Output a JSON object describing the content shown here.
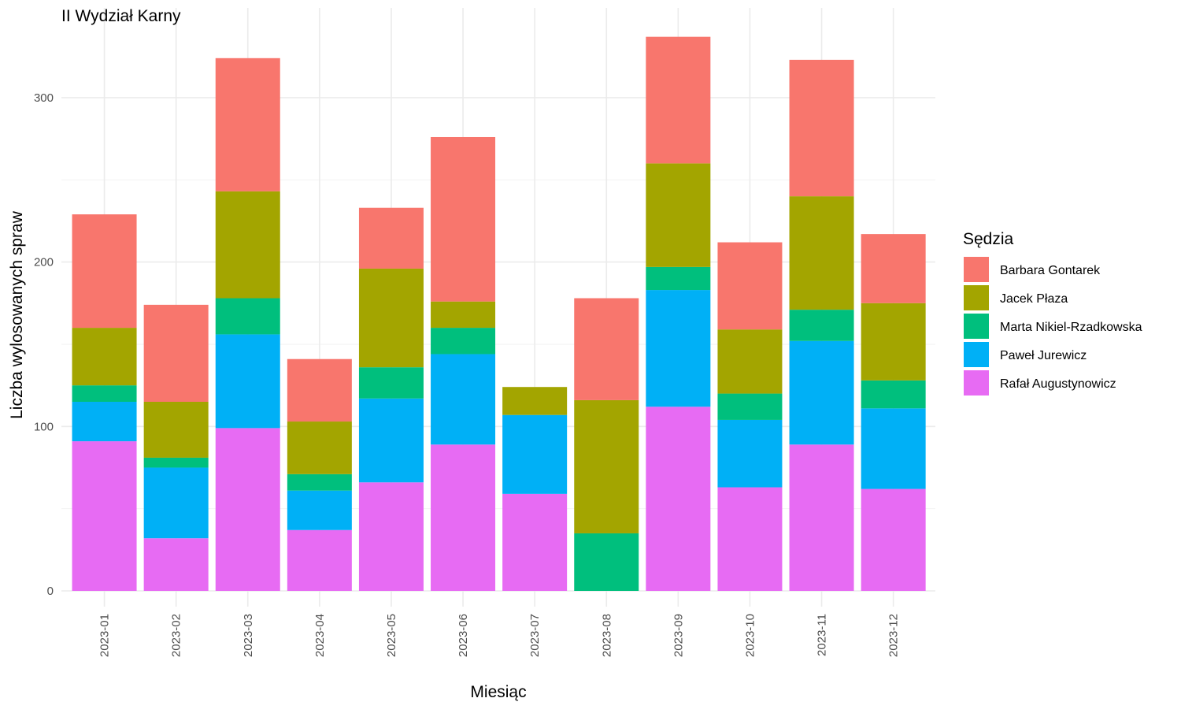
{
  "chart_data": {
    "type": "bar",
    "stacked": true,
    "title": "II Wydział Karny",
    "xlabel": "Miesiąc",
    "ylabel": "Liczba wylosowanych spraw",
    "ylim": [
      0,
      340
    ],
    "yticks": [
      0,
      100,
      200,
      300
    ],
    "grid": true,
    "legend_position": "right",
    "legend_title": "Sędzia",
    "categories": [
      "2023-01",
      "2023-02",
      "2023-03",
      "2023-04",
      "2023-05",
      "2023-06",
      "2023-07",
      "2023-08",
      "2023-09",
      "2023-10",
      "2023-11",
      "2023-12"
    ],
    "series": [
      {
        "name": "Rafał Augustynowicz",
        "color": "#E76BF3",
        "values": [
          91,
          32,
          99,
          37,
          66,
          89,
          59,
          0,
          112,
          63,
          89,
          62
        ]
      },
      {
        "name": "Paweł Jurewicz",
        "color": "#00B0F6",
        "values": [
          24,
          43,
          57,
          24,
          51,
          55,
          48,
          0,
          71,
          41,
          63,
          49
        ]
      },
      {
        "name": "Marta Nikiel-Rzadkowska",
        "color": "#00BF7D",
        "values": [
          10,
          6,
          22,
          10,
          19,
          16,
          0,
          35,
          14,
          16,
          19,
          17
        ]
      },
      {
        "name": "Jacek Płaza",
        "color": "#A3A500",
        "values": [
          35,
          34,
          65,
          32,
          60,
          16,
          17,
          81,
          63,
          39,
          69,
          47
        ]
      },
      {
        "name": "Barbara Gontarek",
        "color": "#F8766D",
        "values": [
          69,
          59,
          81,
          38,
          37,
          100,
          0,
          62,
          77,
          53,
          83,
          42
        ]
      }
    ],
    "legend_order": [
      "Barbara Gontarek",
      "Jacek Płaza",
      "Marta Nikiel-Rzadkowska",
      "Paweł Jurewicz",
      "Rafał Augustynowicz"
    ]
  }
}
